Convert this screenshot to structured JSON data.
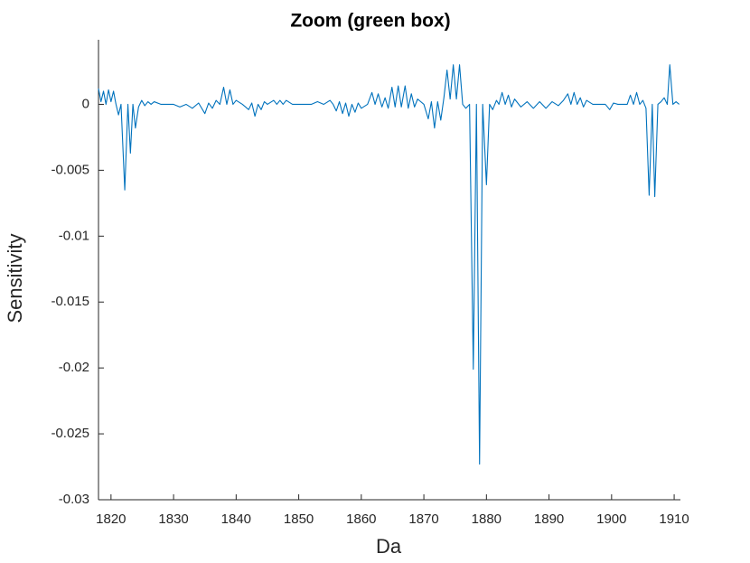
{
  "chart_data": {
    "type": "line",
    "title": "Zoom (green box)",
    "x_label": "Da",
    "y_label": "Sensitivity",
    "xlim": [
      1818,
      1911
    ],
    "ylim": [
      -0.03,
      0.0049
    ],
    "xticks": [
      1820,
      1830,
      1840,
      1850,
      1860,
      1870,
      1880,
      1890,
      1900,
      1910
    ],
    "yticks": [
      0,
      -0.005,
      -0.01,
      -0.015,
      -0.02,
      -0.025,
      -0.03
    ],
    "grid": false,
    "x": [
      1818,
      1818.4,
      1818.8,
      1819.2,
      1819.6,
      1820,
      1820.4,
      1820.8,
      1821.2,
      1821.6,
      1822.2,
      1822.7,
      1823.1,
      1823.5,
      1823.9,
      1824.4,
      1824.9,
      1825.4,
      1825.9,
      1826.4,
      1826.9,
      1828,
      1830,
      1831,
      1832,
      1833,
      1834,
      1835,
      1835.6,
      1836.2,
      1836.8,
      1837.4,
      1838,
      1838.5,
      1839,
      1839.5,
      1840,
      1841,
      1842,
      1842.5,
      1843,
      1843.5,
      1844,
      1844.5,
      1845,
      1846,
      1846.5,
      1847,
      1847.5,
      1848,
      1849,
      1852,
      1853,
      1854,
      1855,
      1855.5,
      1856,
      1856.5,
      1857,
      1857.5,
      1858,
      1858.5,
      1859,
      1859.5,
      1860,
      1861,
      1861.7,
      1862.2,
      1862.7,
      1863.3,
      1863.8,
      1864.3,
      1864.9,
      1865.4,
      1865.9,
      1866.4,
      1867,
      1867.5,
      1868,
      1868.5,
      1869,
      1870,
      1870.7,
      1871.2,
      1871.7,
      1872.2,
      1872.7,
      1873.2,
      1873.7,
      1874.2,
      1874.7,
      1875.2,
      1875.7,
      1876.2,
      1876.7,
      1877.3,
      1877.9,
      1878.4,
      1878.9,
      1879.4,
      1880,
      1880.5,
      1881,
      1881.6,
      1882,
      1882.5,
      1883,
      1883.5,
      1884,
      1884.5,
      1885.5,
      1886.5,
      1887.5,
      1888.5,
      1889.5,
      1890.5,
      1891.5,
      1892.3,
      1893,
      1893.5,
      1894,
      1894.5,
      1895,
      1895.5,
      1896,
      1897,
      1899,
      1899.7,
      1900.3,
      1901,
      1902.5,
      1903,
      1903.5,
      1904,
      1904.5,
      1905,
      1905.5,
      1906,
      1906.5,
      1906.9,
      1907.4,
      1907.9,
      1908.4,
      1908.9,
      1909.3,
      1909.8,
      1910.3,
      1910.8
    ],
    "series": [
      {
        "color": "#0072bd",
        "values": [
          0.0012,
          0.0002,
          0.001,
          0,
          0.0011,
          0.0002,
          0.001,
          0,
          -0.0008,
          0,
          -0.0065,
          0,
          -0.0037,
          0,
          -0.0018,
          -0.0002,
          0.0003,
          -0.0001,
          0.0002,
          0,
          0.0002,
          0,
          0,
          -0.0002,
          0,
          -0.0003,
          0.0001,
          -0.0007,
          0.0001,
          -0.0003,
          0.0003,
          0,
          0.0013,
          0,
          0.0011,
          0,
          0.0003,
          0,
          -0.0004,
          0.0001,
          -0.0009,
          0,
          -0.0004,
          0.0002,
          0,
          0.0003,
          0,
          0.0003,
          0,
          0.0003,
          0,
          0,
          0.0002,
          0,
          0.0003,
          0,
          -0.0005,
          0.0002,
          -0.0007,
          0.0001,
          -0.0009,
          0,
          -0.0006,
          0.0001,
          -0.0003,
          0,
          0.0009,
          0,
          0.0008,
          -0.0002,
          0.0005,
          -0.0003,
          0.0013,
          -0.0002,
          0.0014,
          -0.0002,
          0.0014,
          -0.0003,
          0.0008,
          -0.0002,
          0.0004,
          0,
          -0.0011,
          0.0002,
          -0.0018,
          0.0002,
          -0.0012,
          0.0005,
          0.0026,
          0.0004,
          0.003,
          0.0004,
          0.003,
          0,
          -0.0003,
          0,
          -0.0201,
          0,
          -0.0273,
          0,
          -0.0061,
          0,
          -0.0004,
          0.0003,
          0,
          0.0009,
          0,
          0.0007,
          -0.0002,
          0.0004,
          -0.0002,
          0.0002,
          -0.0003,
          0.0002,
          -0.0003,
          0.0002,
          -0.0001,
          0.0003,
          0.0008,
          0,
          0.0009,
          0,
          0.0005,
          -0.0002,
          0.0003,
          0,
          0,
          -0.0004,
          0.0001,
          0,
          0,
          0.0007,
          0,
          0.0009,
          0,
          0.0003,
          -0.0003,
          -0.0069,
          0,
          -0.007,
          0,
          0.0002,
          0.0005,
          0,
          0.003,
          0,
          0.0002,
          0
        ]
      }
    ]
  }
}
